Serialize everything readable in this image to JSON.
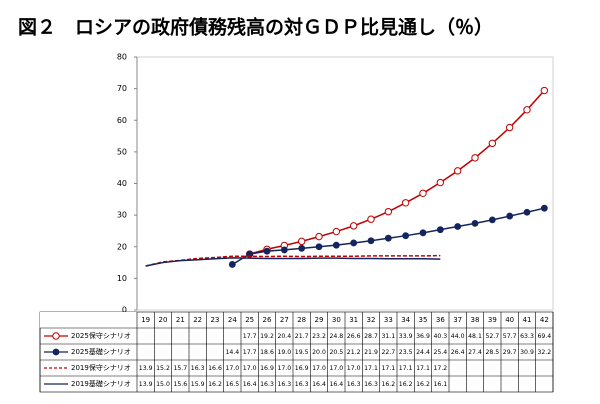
{
  "chart_data": {
    "type": "line",
    "title": "図２　ロシアの政府債務残高の対ＧＤＰ比見通し（％）",
    "categories": [
      "19",
      "20",
      "21",
      "22",
      "23",
      "24",
      "25",
      "26",
      "27",
      "28",
      "29",
      "30",
      "31",
      "32",
      "33",
      "34",
      "35",
      "36",
      "37",
      "38",
      "39",
      "40",
      "41",
      "42"
    ],
    "ylim": [
      0,
      80
    ],
    "yticks": [
      0,
      10,
      20,
      30,
      40,
      50,
      60,
      70,
      80
    ],
    "series": [
      {
        "name": "2025保守シナリオ",
        "color": "#c00000",
        "marker": "open-circle",
        "dash": false,
        "values": [
          null,
          null,
          null,
          null,
          null,
          null,
          17.7,
          19.2,
          20.4,
          21.7,
          23.2,
          24.8,
          26.6,
          28.7,
          31.1,
          33.9,
          36.9,
          40.3,
          44.0,
          48.1,
          52.7,
          57.7,
          63.3,
          69.4
        ],
        "value_labels": [
          null,
          null,
          null,
          null,
          null,
          null,
          "17.7",
          "19.2",
          "20.4",
          "21.7",
          "23.2",
          "24.8",
          "26.6",
          "28.7",
          "31.1",
          "33.9",
          "36.9",
          "40.3",
          "44.0",
          "48.1",
          "52.7",
          "57.7",
          "63.3",
          "69.4"
        ]
      },
      {
        "name": "2025基礎シナリオ",
        "color": "#14245e",
        "marker": "filled-circle",
        "dash": false,
        "values": [
          null,
          null,
          null,
          null,
          null,
          14.4,
          17.7,
          18.6,
          19.0,
          19.5,
          20.0,
          20.5,
          21.2,
          21.9,
          22.7,
          23.5,
          24.4,
          25.4,
          26.4,
          27.4,
          28.5,
          29.7,
          30.9,
          32.2
        ],
        "value_labels": [
          null,
          null,
          null,
          null,
          null,
          "14.4",
          "17.7",
          "18.6",
          "19.0",
          "19.5",
          "20.0",
          "20.5",
          "21.2",
          "21.9",
          "22.7",
          "23.5",
          "24.4",
          "25.4",
          "26.4",
          "27.4",
          "28.5",
          "29.7",
          "30.9",
          "32.2"
        ]
      },
      {
        "name": "2019保守シナリオ",
        "color": "#c00000",
        "marker": "none",
        "dash": true,
        "values": [
          13.9,
          15.2,
          15.7,
          16.3,
          16.6,
          17.0,
          17.0,
          16.9,
          17.0,
          16.9,
          17.0,
          17.0,
          17.0,
          17.1,
          17.1,
          17.1,
          17.1,
          17.2,
          null,
          null,
          null,
          null,
          null,
          null
        ],
        "value_labels": [
          "13.9",
          "15.2",
          "15.7",
          "16.3",
          "16.6",
          "17.0",
          "17.0",
          "16.9",
          "17.0",
          "16.9",
          "17.0",
          "17.0",
          "17.0",
          "17.1",
          "17.1",
          "17.1",
          "17.1",
          "17.2",
          null,
          null,
          null,
          null,
          null,
          null
        ]
      },
      {
        "name": "2019基礎シナリオ",
        "color": "#14245e",
        "marker": "none",
        "dash": false,
        "values": [
          13.9,
          15.0,
          15.6,
          15.9,
          16.2,
          16.5,
          16.4,
          16.3,
          16.3,
          16.3,
          16.4,
          16.4,
          16.3,
          16.3,
          16.2,
          16.2,
          16.2,
          16.1,
          null,
          null,
          null,
          null,
          null,
          null
        ],
        "value_labels": [
          "13.9",
          "15.0",
          "15.6",
          "15.9",
          "16.2",
          "16.5",
          "16.4",
          "16.3",
          "16.3",
          "16.3",
          "16.4",
          "16.4",
          "16.3",
          "16.3",
          "16.2",
          "16.2",
          "16.2",
          "16.1",
          null,
          null,
          null,
          null,
          null,
          null
        ]
      }
    ]
  }
}
